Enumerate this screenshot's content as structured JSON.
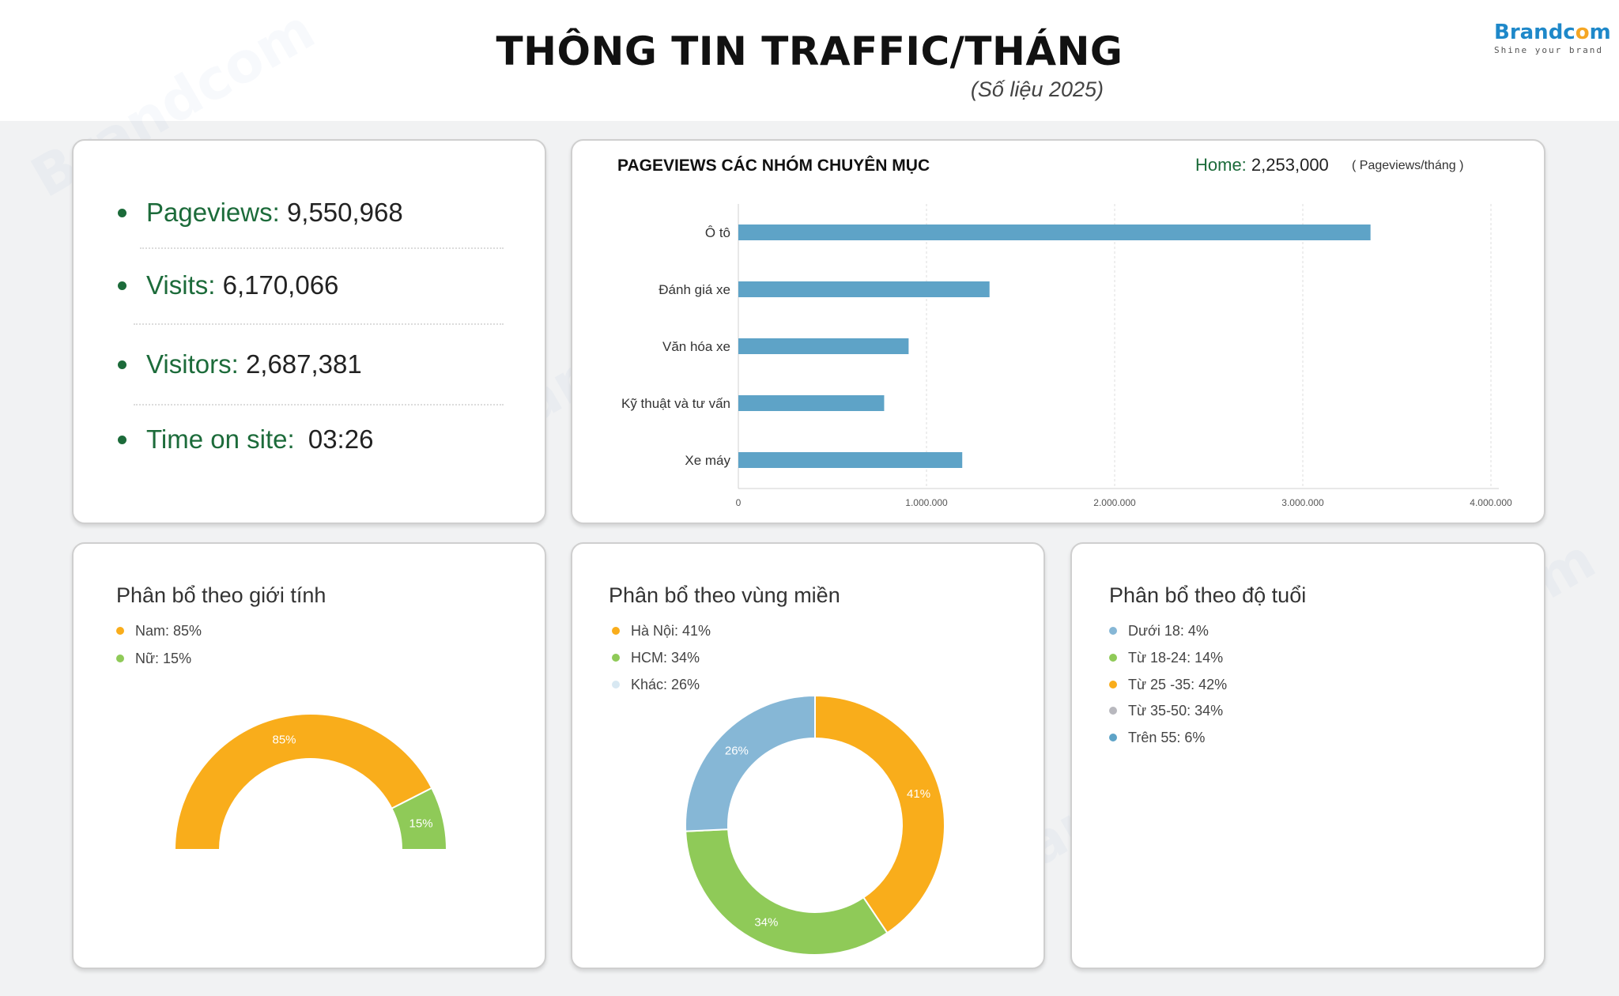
{
  "header": {
    "title": "THÔNG TIN TRAFFIC/THÁNG",
    "subtitle": "(Số liệu 2025)",
    "logo_name": "Brandcom",
    "logo_tagline": "Shine your brand"
  },
  "kpis": [
    {
      "label": "Pageviews:",
      "value": "9,550,968"
    },
    {
      "label": "Visits:",
      "value": "6,170,066"
    },
    {
      "label": "Visitors:",
      "value": "2,687,381"
    },
    {
      "label": "Time on site:",
      "value": "03:26"
    }
  ],
  "chart_data": [
    {
      "type": "bar",
      "orientation": "horizontal",
      "title": "PAGEVIEWS CÁC NHÓM CHUYÊN MỤC",
      "home_label": "Home:",
      "home_value": "2,253,000",
      "unit_note": "( Pageviews/tháng )",
      "categories": [
        "Ô tô",
        "Đánh giá xe",
        "Văn hóa xe",
        "Kỹ thuật và tư vấn",
        "Xe máy"
      ],
      "values": [
        3360000,
        1335000,
        905000,
        775000,
        1190000
      ],
      "xlim": [
        0,
        4000000
      ],
      "x_ticks": [
        "0",
        "1.000.000",
        "2.000.000",
        "3.000.000",
        "4.000.000"
      ],
      "color": "#5ea3c7",
      "grid": true
    },
    {
      "type": "pie",
      "variant": "semi-donut",
      "title": "Phân bổ theo giới tính",
      "labels": [
        "Nam",
        "Nữ"
      ],
      "legend": [
        "Nam: 85%",
        "Nữ: 15%"
      ],
      "values": [
        85,
        15
      ],
      "value_labels": [
        "85%",
        "15%"
      ],
      "colors": [
        "#f9ad1b",
        "#8fca58"
      ]
    },
    {
      "type": "pie",
      "variant": "donut",
      "title": "Phân bổ theo vùng miền",
      "labels": [
        "Hà Nội",
        "HCM",
        "Khác"
      ],
      "legend": [
        "Hà Nội: 41%",
        "HCM: 34%",
        "Khác: 26%"
      ],
      "values": [
        41,
        34,
        26
      ],
      "value_labels": [
        "41%",
        "34%",
        "26%"
      ],
      "colors": [
        "#f9ad1b",
        "#8fca58",
        "#86b7d6"
      ],
      "legend_colors": [
        "#f9ad1b",
        "#8fca58",
        "#d8e8f2"
      ]
    },
    {
      "type": "pie",
      "variant": "legend-only",
      "title": "Phân bổ theo độ tuổi",
      "labels": [
        "Dưới 18",
        "Từ 18-24",
        "Từ 25 -35",
        "Từ 35-50",
        "Trên 55"
      ],
      "legend": [
        "Dưới 18: 4%",
        "Từ 18-24: 14%",
        "Từ 25 -35: 42%",
        "Từ 35-50: 34%",
        "Trên 55: 6%"
      ],
      "values": [
        4,
        14,
        42,
        34,
        6
      ],
      "colors": [
        "#86b7d6",
        "#8fca58",
        "#f9ad1b",
        "#b8b8be",
        "#5ea3c7"
      ]
    }
  ]
}
